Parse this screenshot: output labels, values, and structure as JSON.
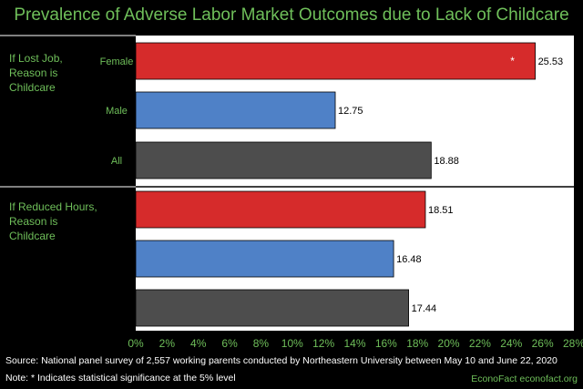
{
  "chart_data": {
    "type": "bar",
    "orientation": "horizontal",
    "title": "Prevalence of Adverse Labor Market Outcomes due to Lack of Childcare",
    "groups": [
      {
        "label": "If Lost Job, Reason is Childcare",
        "label_lines": [
          "If Lost Job,",
          "Reason is",
          "Childcare"
        ],
        "bars": [
          {
            "category": "Female",
            "value": 25.53,
            "value_label": "25.53",
            "color": "#d62b2b",
            "significant": true
          },
          {
            "category": "Male",
            "value": 12.75,
            "value_label": "12.75",
            "color": "#4f81c7",
            "significant": false
          },
          {
            "category": "All",
            "value": 18.88,
            "value_label": "18.88",
            "color": "#4d4d4d",
            "significant": false
          }
        ]
      },
      {
        "label": "If Reduced Hours, Reason is Childcare",
        "label_lines": [
          "If Reduced Hours,",
          "Reason is",
          "Childcare"
        ],
        "bars": [
          {
            "category": "",
            "value": 18.51,
            "value_label": "18.51",
            "color": "#d62b2b",
            "significant": false
          },
          {
            "category": "",
            "value": 16.48,
            "value_label": "16.48",
            "color": "#4f81c7",
            "significant": false
          },
          {
            "category": "",
            "value": 17.44,
            "value_label": "17.44",
            "color": "#4d4d4d",
            "significant": false
          }
        ]
      }
    ],
    "xlim": [
      0,
      28
    ],
    "xticks": [
      "0%",
      "2%",
      "4%",
      "6%",
      "8%",
      "10%",
      "12%",
      "14%",
      "16%",
      "18%",
      "20%",
      "22%",
      "24%",
      "26%",
      "28%"
    ],
    "significance_marker": "*",
    "grid": false
  },
  "footer": {
    "source": "Source: National panel survey of 2,557 working parents conducted by Northeastern University between May 10 and June 22, 2020",
    "note": "Note:   * Indicates statistical significance at the 5% level",
    "brand": "EconoFact   econofact.org"
  },
  "colors": {
    "plot_background": "#ffffff",
    "page_background": "#000000",
    "accent_text": "#6fbf5a"
  }
}
